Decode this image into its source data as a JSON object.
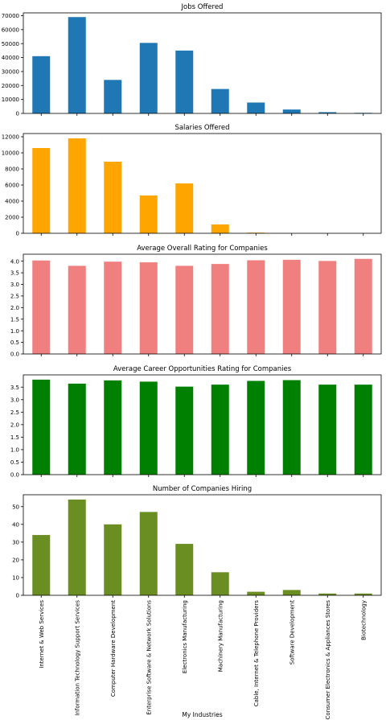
{
  "chart_data": [
    {
      "type": "bar",
      "title": "Jobs Offered",
      "color": "#1f77b4",
      "ylim": [
        0,
        72000
      ],
      "yticks": [
        0,
        10000,
        20000,
        30000,
        40000,
        50000,
        60000,
        70000
      ],
      "values": [
        41000,
        69000,
        24000,
        50500,
        45000,
        17500,
        7800,
        2800,
        900,
        400
      ]
    },
    {
      "type": "bar",
      "title": "Salaries Offered",
      "color": "#ffa500",
      "ylim": [
        0,
        12400
      ],
      "yticks": [
        0,
        2000,
        4000,
        6000,
        8000,
        10000,
        12000
      ],
      "values": [
        10600,
        11800,
        8900,
        4700,
        6200,
        1100,
        80,
        0,
        0,
        0
      ]
    },
    {
      "type": "bar",
      "title": "Average Overall Rating for Companies",
      "color": "#f08080",
      "ylim": [
        0,
        4.3
      ],
      "yticks": [
        0.0,
        0.5,
        1.0,
        1.5,
        2.0,
        2.5,
        3.0,
        3.5,
        4.0
      ],
      "tick_decimals": 1,
      "values": [
        4.03,
        3.8,
        3.98,
        3.95,
        3.8,
        3.88,
        4.04,
        4.06,
        4.01,
        4.1
      ]
    },
    {
      "type": "bar",
      "title": "Average Career Opportunities Rating for Companies",
      "color": "#008000",
      "ylim": [
        0,
        3.99
      ],
      "yticks": [
        0.0,
        0.5,
        1.0,
        1.5,
        2.0,
        2.5,
        3.0,
        3.5
      ],
      "tick_decimals": 1,
      "values": [
        3.8,
        3.64,
        3.77,
        3.72,
        3.52,
        3.6,
        3.75,
        3.78,
        3.6,
        3.6
      ]
    },
    {
      "type": "bar",
      "title": "Number of Companies Hiring",
      "color": "#6b8e23",
      "ylim": [
        0,
        56.7
      ],
      "yticks": [
        0,
        10,
        20,
        30,
        40,
        50
      ],
      "values": [
        34,
        54,
        40,
        47,
        29,
        13,
        2,
        3,
        1,
        1
      ],
      "categories": [
        "Internet & Web Services",
        "Information Technology Support Services",
        "Computer Hardware Development",
        "Enterprise Software & Network Solutions",
        "Electronics Manufacturing",
        "Machinery Manufacturing",
        "Cable, Internet & Telephone Providers",
        "Software Development",
        "Consumer Electronics & Appliances Stores",
        "Biotechnology"
      ],
      "xlabel": "My Industries"
    }
  ]
}
